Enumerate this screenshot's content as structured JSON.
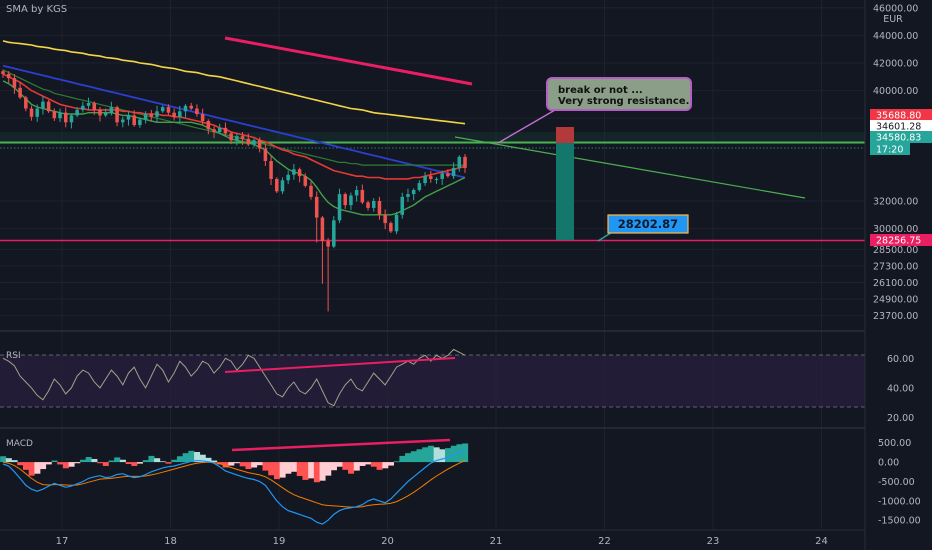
{
  "header": {
    "title": "SMA by KGS",
    "currency": "EUR"
  },
  "chart_data": {
    "type": "line",
    "x_ticks": [
      "17",
      "18",
      "19",
      "20",
      "21",
      "22",
      "23",
      "24"
    ],
    "price": {
      "y_ticks": [
        "46000.00",
        "44000.00",
        "42000.00",
        "40000.00",
        "38000.00",
        "32000.00",
        "30000.00",
        "28500.00",
        "27300.00",
        "26100.00",
        "24900.00",
        "23700.00"
      ],
      "ylim": [
        22800,
        46200
      ],
      "close": [
        41200,
        40900,
        40200,
        39500,
        38700,
        38100,
        38700,
        39200,
        38500,
        38000,
        38400,
        37700,
        38200,
        38600,
        38900,
        39100,
        38600,
        38200,
        38400,
        38800,
        37700,
        37900,
        38200,
        37500,
        37900,
        38300,
        38100,
        38500,
        38800,
        38400,
        38100,
        38500,
        38900,
        38700,
        38300,
        37800,
        37200,
        37000,
        37300,
        36900,
        36400,
        36700,
        36500,
        36100,
        36400,
        35800,
        34900,
        33600,
        32700,
        33500,
        33900,
        34300,
        33800,
        33100,
        32300,
        30800,
        29100,
        28700,
        30600,
        32500,
        31700,
        32400,
        32800,
        31900,
        31500,
        32000,
        31000,
        30400,
        29800,
        31000,
        32300,
        32500,
        32800,
        33300,
        33800,
        33600,
        33600,
        34000,
        33800,
        34400,
        35200,
        34400
      ],
      "sma_green": [
        40700,
        40500,
        40200,
        39800,
        39400,
        39000,
        38800,
        38700,
        38600,
        38500,
        38400,
        38300,
        38300,
        38300,
        38300,
        38400,
        38400,
        38400,
        38400,
        38400,
        38300,
        38200,
        38200,
        38100,
        38000,
        37900,
        37800,
        37700,
        37700,
        37700,
        37700,
        37700,
        37700,
        37700,
        37600,
        37500,
        37300,
        37100,
        36900,
        36700,
        36500,
        36400,
        36300,
        36200,
        36100,
        35900,
        35700,
        35300,
        34900,
        34600,
        34300,
        34100,
        34000,
        33800,
        33500,
        33000,
        32400,
        31900,
        31600,
        31400,
        31300,
        31200,
        31100,
        31000,
        31000,
        31000,
        31000,
        31000,
        31000,
        31100,
        31300,
        31500,
        31700,
        32000,
        32300,
        32500,
        32700,
        32900,
        33100,
        33300,
        33500,
        33700
      ],
      "sma_red": [
        41200,
        41000,
        40800,
        40600,
        40300,
        40000,
        39800,
        39600,
        39400,
        39200,
        39000,
        38900,
        38800,
        38700,
        38700,
        38600,
        38600,
        38600,
        38600,
        38600,
        38600,
        38500,
        38500,
        38400,
        38400,
        38300,
        38300,
        38300,
        38200,
        38200,
        38100,
        38100,
        38000,
        37900,
        37800,
        37700,
        37600,
        37500,
        37300,
        37200,
        37000,
        36900,
        36800,
        36700,
        36600,
        36400,
        36300,
        36100,
        35900,
        35700,
        35600,
        35400,
        35300,
        35200,
        35000,
        34800,
        34600,
        34400,
        34200,
        34100,
        34000,
        33900,
        33800,
        33800,
        33700,
        33700,
        33700,
        33600,
        33600,
        33600,
        33600,
        33600,
        33700,
        33700,
        33800,
        33900,
        34000,
        34100,
        34200,
        34300,
        34400,
        34500
      ],
      "sma_darkgreen": [
        41500,
        41300,
        41100,
        40900,
        40700,
        40500,
        40300,
        40100,
        40000,
        39800,
        39700,
        39600,
        39500,
        39400,
        39300,
        39200,
        39100,
        39000,
        38900,
        38800,
        38700,
        38600,
        38500,
        38400,
        38300,
        38200,
        38100,
        38000,
        37900,
        37800,
        37700,
        37600,
        37500,
        37400,
        37300,
        37200,
        37100,
        37000,
        36900,
        36800,
        36700,
        36600,
        36500,
        36400,
        36300,
        36200,
        36100,
        36000,
        35900,
        35800,
        35700,
        35600,
        35500,
        35400,
        35300,
        35200,
        35100,
        35000,
        34900,
        34800,
        34800,
        34700,
        34700,
        34600,
        34600,
        34600,
        34600,
        34600,
        34600,
        34600,
        34600,
        34600,
        34600,
        34600,
        34600,
        34600,
        34600,
        34600,
        34600,
        34600,
        34600,
        34600
      ],
      "sma_blue": [
        41800,
        41700,
        41600,
        41500,
        41400,
        41300,
        41200,
        41100,
        41000,
        40900,
        40800,
        40700,
        40600,
        40500,
        40400,
        40300,
        40200,
        40100,
        40000,
        39900,
        39800,
        39700,
        39600,
        39500,
        39400,
        39300,
        39200,
        39100,
        39000,
        38900,
        38800,
        38700,
        38600,
        38500,
        38400,
        38300,
        38200,
        38100,
        38000,
        37900,
        37800,
        37700,
        37600,
        37500,
        37400,
        37300,
        37200,
        37100,
        37000,
        36900,
        36800,
        36700,
        36600,
        36500,
        36400,
        36300,
        36200,
        36100,
        36000,
        35900,
        35800,
        35700,
        35600,
        35500,
        35400,
        35300,
        35200,
        35100,
        35000,
        34900,
        34800,
        34700,
        34600,
        34500,
        34400,
        34300,
        34200,
        34100,
        34000,
        33900,
        33800,
        33700
      ],
      "sma_yellow": [
        43600,
        43500,
        43450,
        43400,
        43350,
        43300,
        43200,
        43150,
        43100,
        43000,
        42950,
        42900,
        42800,
        42750,
        42700,
        42600,
        42550,
        42500,
        42400,
        42350,
        42300,
        42200,
        42150,
        42100,
        42000,
        41950,
        41900,
        41800,
        41700,
        41650,
        41600,
        41500,
        41400,
        41350,
        41300,
        41200,
        41100,
        41050,
        41000,
        40900,
        40800,
        40700,
        40600,
        40500,
        40400,
        40300,
        40200,
        40100,
        40000,
        39900,
        39800,
        39700,
        39600,
        39500,
        39400,
        39300,
        39200,
        39100,
        39000,
        38900,
        38800,
        38700,
        38650,
        38600,
        38500,
        38400,
        38350,
        38300,
        38250,
        38200,
        38150,
        38100,
        38050,
        38000,
        37950,
        37900,
        37850,
        37800,
        37750,
        37700,
        37650,
        37600
      ],
      "labels": {
        "top_red": "35688.80",
        "white": "34601.28",
        "green": "34580.83",
        "countdown": "17:20",
        "support": "28256.75"
      },
      "annotations": {
        "callout": [
          "break or not ...",
          "Very strong resistance."
        ],
        "target": "28202.87"
      }
    },
    "rsi": {
      "label": "RSI",
      "y_ticks": [
        "60.00",
        "40.00",
        "20.00"
      ],
      "ylim": [
        15,
        75
      ],
      "values": [
        60,
        58,
        55,
        48,
        44,
        40,
        35,
        32,
        38,
        46,
        42,
        36,
        40,
        48,
        52,
        50,
        44,
        40,
        46,
        52,
        48,
        42,
        50,
        54,
        46,
        40,
        48,
        56,
        52,
        44,
        50,
        58,
        54,
        48,
        52,
        58,
        56,
        50,
        54,
        60,
        58,
        52,
        56,
        62,
        60,
        54,
        48,
        42,
        36,
        34,
        40,
        44,
        38,
        36,
        40,
        46,
        38,
        30,
        28,
        36,
        42,
        46,
        40,
        38,
        44,
        50,
        46,
        42,
        48,
        54,
        56,
        58,
        56,
        60,
        62,
        58,
        62,
        60,
        62,
        66,
        64,
        62
      ]
    },
    "macd": {
      "label": "MACD",
      "y_ticks": [
        "500.00",
        "0.00",
        "-500.00",
        "-1000.00",
        "-1500.00"
      ],
      "ylim": [
        -1700,
        750
      ],
      "histogram": [
        150,
        100,
        50,
        -80,
        -200,
        -350,
        -300,
        -180,
        -60,
        40,
        -60,
        -160,
        -120,
        -30,
        60,
        130,
        80,
        -30,
        -100,
        40,
        120,
        60,
        -50,
        -100,
        -40,
        50,
        160,
        100,
        20,
        -40,
        60,
        150,
        230,
        290,
        260,
        190,
        110,
        40,
        -60,
        -140,
        -90,
        -30,
        -110,
        -180,
        -140,
        -80,
        -220,
        -340,
        -440,
        -400,
        -300,
        -250,
        -360,
        -460,
        -420,
        -520,
        -480,
        -350,
        -210,
        -120,
        -200,
        -300,
        -220,
        -100,
        -60,
        -120,
        -200,
        -160,
        -90,
        20,
        160,
        230,
        280,
        330,
        380,
        420,
        380,
        330,
        360,
        420,
        460,
        480
      ],
      "macd_line": [
        -50,
        -100,
        -250,
        -420,
        -600,
        -700,
        -750,
        -700,
        -620,
        -550,
        -600,
        -650,
        -620,
        -560,
        -500,
        -420,
        -380,
        -350,
        -400,
        -380,
        -320,
        -300,
        -360,
        -400,
        -380,
        -320,
        -250,
        -200,
        -150,
        -120,
        -100,
        -60,
        -20,
        20,
        40,
        30,
        10,
        -30,
        -120,
        -230,
        -280,
        -330,
        -380,
        -420,
        -450,
        -500,
        -600,
        -800,
        -1000,
        -1150,
        -1250,
        -1300,
        -1350,
        -1400,
        -1450,
        -1550,
        -1600,
        -1500,
        -1350,
        -1250,
        -1200,
        -1180,
        -1150,
        -1100,
        -1000,
        -950,
        -1000,
        -1050,
        -950,
        -800,
        -650,
        -500,
        -380,
        -260,
        -140,
        -30,
        40,
        80,
        120,
        200,
        260,
        330
      ],
      "signal_line": [
        0,
        -30,
        -90,
        -180,
        -300,
        -420,
        -520,
        -580,
        -590,
        -580,
        -580,
        -590,
        -600,
        -590,
        -560,
        -520,
        -480,
        -440,
        -430,
        -420,
        -400,
        -380,
        -370,
        -370,
        -370,
        -360,
        -330,
        -300,
        -260,
        -220,
        -180,
        -140,
        -100,
        -60,
        -30,
        -10,
        0,
        -10,
        -40,
        -90,
        -140,
        -190,
        -230,
        -270,
        -300,
        -330,
        -380,
        -460,
        -560,
        -660,
        -760,
        -840,
        -900,
        -950,
        -1000,
        -1050,
        -1100,
        -1120,
        -1130,
        -1140,
        -1150,
        -1160,
        -1160,
        -1150,
        -1120,
        -1100,
        -1090,
        -1080,
        -1060,
        -1020,
        -950,
        -870,
        -780,
        -680,
        -570,
        -460,
        -360,
        -270,
        -180,
        -100,
        -30,
        40
      ]
    }
  }
}
